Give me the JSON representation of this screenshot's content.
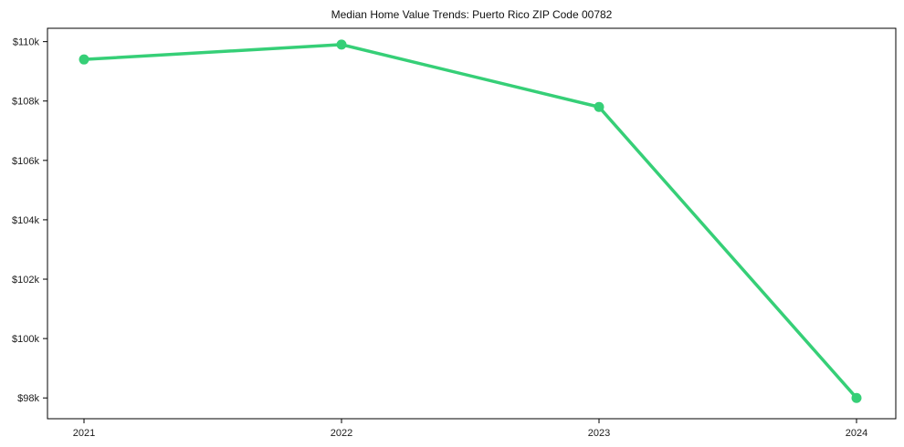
{
  "figure": {
    "title": "Median Home Value Trends: Puerto Rico ZIP Code 00782"
  },
  "chart_data": {
    "type": "line",
    "title": "Median Home Value Trends: Puerto Rico ZIP Code 00782",
    "x": [
      2021,
      2022,
      2023,
      2024
    ],
    "xtick_labels": [
      "2021",
      "2022",
      "2023",
      "2024"
    ],
    "series": [
      {
        "name": "Median home value",
        "values": [
          109400,
          109900,
          107800,
          98000
        ],
        "color": "#36cf77"
      }
    ],
    "ylim": [
      97300,
      110450
    ],
    "yticks": [
      98000,
      100000,
      102000,
      104000,
      106000,
      108000,
      110000
    ],
    "ytick_labels": [
      "$98k",
      "$100k",
      "$102k",
      "$104k",
      "$106k",
      "$108k",
      "$110k"
    ],
    "xlabel": "",
    "ylabel": "",
    "grid": false,
    "legend": "none",
    "axis_color": "#000000",
    "text_color": "#1a1a1a",
    "background": "#ffffff"
  }
}
